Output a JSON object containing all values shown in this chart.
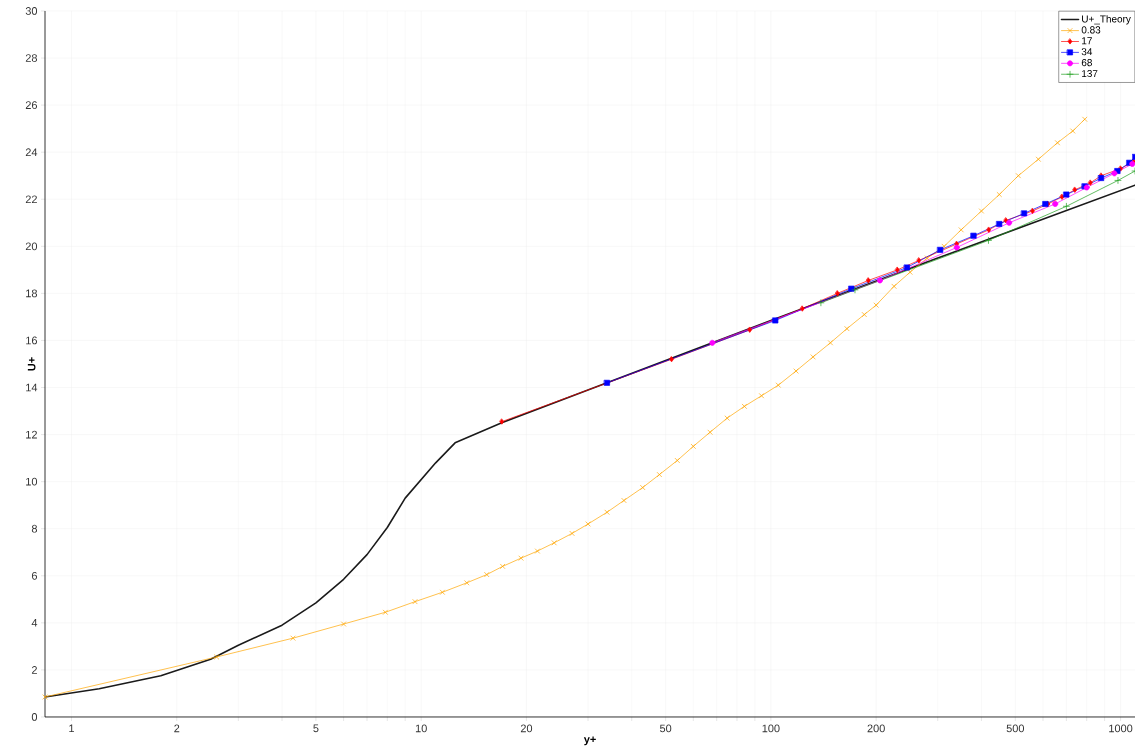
{
  "chart_data": {
    "type": "line",
    "xlabel": "y+",
    "ylabel": "U+",
    "log": "x",
    "grid": true,
    "legend": "top right",
    "line_style": "solid",
    "xlim": [
      0.84,
      1100
    ],
    "ylim": [
      0,
      30
    ],
    "xticks": [
      1,
      2,
      5,
      10,
      20,
      50,
      100,
      200,
      500,
      1000,
      {
        "value": 3,
        "label": null
      },
      {
        "value": 4,
        "label": null
      },
      {
        "value": 6,
        "label": null
      },
      {
        "value": 7,
        "label": null
      },
      {
        "value": 8,
        "label": null
      },
      {
        "value": 9,
        "label": null
      },
      {
        "value": 30,
        "label": null
      },
      {
        "value": 40,
        "label": null
      },
      {
        "value": 60,
        "label": null
      },
      {
        "value": 70,
        "label": null
      },
      {
        "value": 80,
        "label": null
      },
      {
        "value": 90,
        "label": null
      },
      {
        "value": 300,
        "label": null
      },
      {
        "value": 400,
        "label": null
      },
      {
        "value": 600,
        "label": null
      },
      {
        "value": 700,
        "label": null
      },
      {
        "value": 800,
        "label": null
      },
      {
        "value": 900,
        "label": null
      }
    ],
    "yticks": [
      0,
      2,
      4,
      6,
      8,
      10,
      12,
      14,
      16,
      18,
      20,
      22,
      24,
      26,
      28,
      30
    ],
    "series": [
      {
        "name": "U+_Theory",
        "color": "#1a1a1a",
        "marker": "none",
        "x": [
          0.84,
          1.2,
          1.8,
          2.5,
          3,
          4,
          5,
          6,
          7,
          8,
          9,
          11,
          12.5,
          17,
          34,
          100,
          300,
          1100
        ],
        "values": [
          0.85,
          1.2,
          1.75,
          2.45,
          3.05,
          3.9,
          4.85,
          5.85,
          6.9,
          8.05,
          9.3,
          10.8,
          11.65,
          12.5,
          14.2,
          16.85,
          19.5,
          22.6
        ]
      },
      {
        "name": "0.83",
        "color": "#ffa500",
        "marker": "cross",
        "x": [
          0.84,
          2.6,
          4.3,
          6,
          7.9,
          9.6,
          11.5,
          13.5,
          15.4,
          17.1,
          19.3,
          21.5,
          24,
          27,
          30,
          34,
          38,
          43,
          48,
          54,
          60,
          67,
          75,
          84,
          94,
          105,
          118,
          132,
          148,
          165,
          185,
          200,
          225,
          250,
          280,
          313,
          350,
          400,
          450,
          510,
          582,
          660,
          730,
          790
        ],
        "values": [
          0.85,
          2.55,
          3.35,
          3.95,
          4.45,
          4.9,
          5.3,
          5.7,
          6.05,
          6.4,
          6.75,
          7.05,
          7.4,
          7.8,
          8.2,
          8.7,
          9.2,
          9.75,
          10.3,
          10.9,
          11.5,
          12.1,
          12.7,
          13.2,
          13.65,
          14.1,
          14.7,
          15.3,
          15.9,
          16.5,
          17.1,
          17.5,
          18.3,
          18.9,
          19.5,
          20.0,
          20.7,
          21.5,
          22.2,
          23.0,
          23.7,
          24.4,
          24.9,
          25.4
        ]
      },
      {
        "name": "17",
        "color": "#ff0000",
        "marker": "diamond",
        "x": [
          17,
          52,
          87,
          123,
          155,
          190,
          230,
          265,
          340,
          420,
          470,
          560,
          620,
          680,
          740,
          820,
          880,
          1000,
          1090
        ],
        "values": [
          12.55,
          15.2,
          16.45,
          17.35,
          18.0,
          18.55,
          19.0,
          19.4,
          20.1,
          20.7,
          21.1,
          21.5,
          21.8,
          22.1,
          22.4,
          22.7,
          23.0,
          23.3,
          23.6
        ]
      },
      {
        "name": "34",
        "color": "#0000ff",
        "marker": "square",
        "x": [
          34,
          103,
          170,
          245,
          305,
          380,
          450,
          530,
          610,
          700,
          790,
          880,
          980,
          1060,
          1100
        ],
        "values": [
          14.2,
          16.85,
          18.2,
          19.1,
          19.85,
          20.45,
          20.95,
          21.4,
          21.8,
          22.2,
          22.55,
          22.9,
          23.2,
          23.55,
          23.8
        ]
      },
      {
        "name": "68",
        "color": "#ff00ff",
        "marker": "circle",
        "x": [
          68,
          205,
          340,
          480,
          650,
          800,
          960,
          1080
        ],
        "values": [
          15.9,
          18.55,
          19.95,
          21.0,
          21.8,
          22.5,
          23.1,
          23.5
        ]
      },
      {
        "name": "137",
        "color": "#20a020",
        "marker": "plus",
        "x": [
          139,
          174,
          419,
          700,
          983,
          1100
        ],
        "values": [
          17.6,
          18.15,
          20.25,
          21.7,
          22.8,
          23.2
        ]
      }
    ]
  }
}
